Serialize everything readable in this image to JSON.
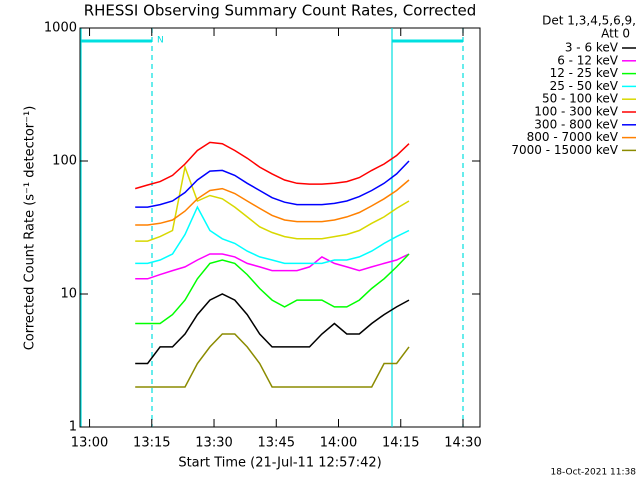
{
  "chart_data": {
    "type": "line",
    "title": "RHESSI Observing Summary Count Rates, Corrected",
    "x_label": "Start Time (21-Jul-11 12:57:42)",
    "y_label": "Corrected Count Rate (s⁻¹ detector⁻¹)",
    "legend_title": [
      "Det 1,3,4,5,6,9,",
      "Att 0"
    ],
    "annotations": [
      "N"
    ],
    "footer": "18-Oct-2021 11:38",
    "log_y": true,
    "legend": "right",
    "xlim": [
      777.7,
      874.1
    ],
    "xticks": [
      {
        "value": 780,
        "label": "13:00"
      },
      {
        "value": 795,
        "label": "13:15"
      },
      {
        "value": 810,
        "label": "13:30"
      },
      {
        "value": 825,
        "label": "13:45"
      },
      {
        "value": 840,
        "label": "14:00"
      },
      {
        "value": 855,
        "label": "14:15"
      },
      {
        "value": 870,
        "label": "14:30"
      }
    ],
    "ylim": [
      1,
      1000
    ],
    "yticks": [
      1,
      10,
      100,
      1000
    ],
    "x": [
      791,
      794,
      797,
      800,
      803,
      806,
      809,
      812,
      815,
      818,
      821,
      824,
      827,
      830,
      833,
      836,
      839,
      842,
      845,
      848,
      851,
      854,
      857
    ],
    "series": [
      {
        "name": "3 - 6 keV",
        "color": "#000000",
        "values": [
          3,
          3,
          4,
          4,
          5,
          7,
          9,
          10,
          9,
          7,
          5,
          4,
          4,
          4,
          4,
          5,
          6,
          5,
          5,
          6,
          7,
          8,
          9
        ]
      },
      {
        "name": "6 - 12 keV",
        "color": "#ff00ff",
        "values": [
          13,
          13,
          14,
          15,
          16,
          18,
          20,
          20,
          19,
          17,
          16,
          15,
          15,
          15,
          16,
          19,
          17,
          16,
          15,
          16,
          17,
          18,
          20
        ]
      },
      {
        "name": "12 - 25 keV",
        "color": "#00ff00",
        "values": [
          6,
          6,
          6,
          7,
          9,
          13,
          17,
          18,
          17,
          14,
          11,
          9,
          8,
          9,
          9,
          9,
          8,
          8,
          9,
          11,
          13,
          16,
          20
        ]
      },
      {
        "name": "25 - 50 keV",
        "color": "#00ffff",
        "values": [
          17,
          17,
          18,
          20,
          28,
          45,
          30,
          26,
          24,
          21,
          19,
          18,
          17,
          17,
          17,
          17,
          18,
          18,
          19,
          21,
          24,
          27,
          30
        ]
      },
      {
        "name": "50 - 100 keV",
        "color": "#d8d800",
        "values": [
          25,
          25,
          27,
          30,
          90,
          50,
          55,
          52,
          45,
          38,
          32,
          29,
          27,
          26,
          26,
          26,
          27,
          28,
          30,
          34,
          38,
          44,
          50
        ]
      },
      {
        "name": "100 - 300 keV",
        "color": "#ff0000",
        "values": [
          62,
          66,
          70,
          78,
          95,
          120,
          138,
          135,
          120,
          105,
          90,
          80,
          72,
          68,
          67,
          67,
          68,
          70,
          75,
          85,
          95,
          110,
          135
        ]
      },
      {
        "name": "300 - 800 keV",
        "color": "#0000ff",
        "values": [
          45,
          45,
          47,
          50,
          58,
          72,
          84,
          85,
          78,
          68,
          60,
          53,
          49,
          47,
          47,
          47,
          48,
          50,
          54,
          60,
          68,
          80,
          100
        ]
      },
      {
        "name": "800 - 7000 keV",
        "color": "#ff8000",
        "values": [
          33,
          33,
          34,
          36,
          42,
          52,
          60,
          62,
          57,
          50,
          44,
          39,
          36,
          35,
          35,
          35,
          36,
          38,
          41,
          46,
          52,
          60,
          72
        ]
      },
      {
        "name": "7000 - 15000 keV",
        "color": "#8b8b00",
        "values": [
          2,
          2,
          2,
          2,
          2,
          3,
          4,
          5,
          5,
          4,
          3,
          2,
          2,
          2,
          2,
          2,
          2,
          2,
          2,
          2,
          3,
          3,
          4
        ]
      }
    ]
  }
}
